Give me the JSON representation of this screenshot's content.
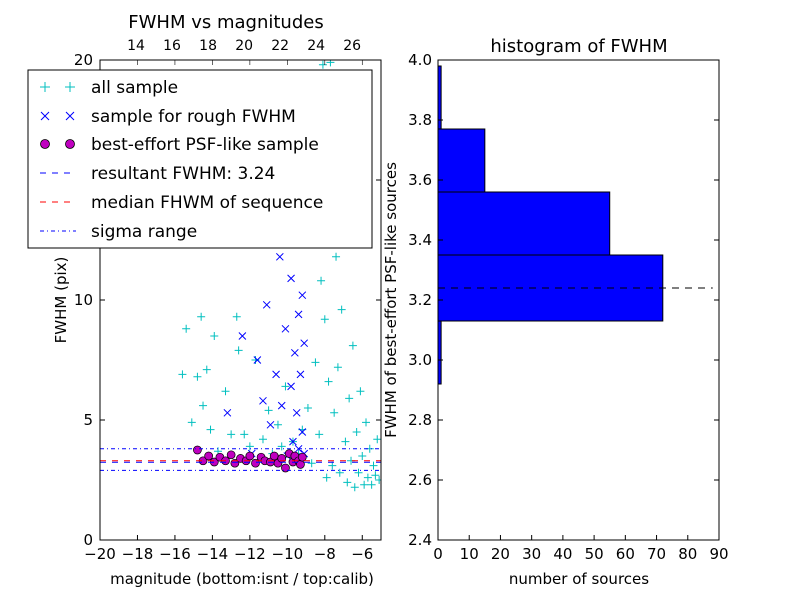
{
  "chart_data": [
    {
      "type": "scatter",
      "title": "FWHM vs magnitudes",
      "xlabel": "magnitude (bottom:isnt / top:calib)",
      "ylabel": "FWHM (pix)",
      "xlim": [
        -20,
        -5
      ],
      "ylim": [
        0,
        20
      ],
      "top_xlim": [
        12,
        27.6
      ],
      "x_ticks": [
        -20,
        -18,
        -16,
        -14,
        -12,
        -10,
        -8,
        -6
      ],
      "x_tick_labels": [
        "−20",
        "−18",
        "−16",
        "−14",
        "−12",
        "−10",
        "−8",
        "−6"
      ],
      "top_ticks": [
        14,
        16,
        18,
        20,
        22,
        24,
        26
      ],
      "top_tick_labels": [
        "14",
        "16",
        "18",
        "20",
        "22",
        "24",
        "26"
      ],
      "y_ticks": [
        0,
        5,
        10,
        15,
        20
      ],
      "y_tick_labels": [
        "0",
        "5",
        "10",
        "15",
        "20"
      ],
      "grid": false,
      "legend": "upper-left",
      "series": [
        {
          "name": "all sample",
          "marker": "+",
          "color": "#00bfbf",
          "points": [
            [
              -15.6,
              6.9
            ],
            [
              -15.4,
              8.8
            ],
            [
              -15.1,
              4.9
            ],
            [
              -14.8,
              6.8
            ],
            [
              -14.6,
              9.3
            ],
            [
              -14.5,
              5.6
            ],
            [
              -14.3,
              7.1
            ],
            [
              -14.1,
              4.6
            ],
            [
              -13.9,
              8.5
            ],
            [
              -13.7,
              3.7
            ],
            [
              -13.3,
              6.2
            ],
            [
              -13.0,
              4.4
            ],
            [
              -12.7,
              9.3
            ],
            [
              -12.6,
              7.9
            ],
            [
              -12.3,
              4.4
            ],
            [
              -12.0,
              3.9
            ],
            [
              -11.7,
              7.5
            ],
            [
              -11.3,
              4.2
            ],
            [
              -11.0,
              5.4
            ],
            [
              -10.8,
              3.6
            ],
            [
              -10.5,
              4.8
            ],
            [
              -10.3,
              3.9
            ],
            [
              -10.1,
              6.4
            ],
            [
              -9.8,
              3.5
            ],
            [
              -9.7,
              4.1
            ],
            [
              -9.4,
              3.6
            ],
            [
              -9.2,
              4.6
            ],
            [
              -9.0,
              18.5
            ],
            [
              -8.9,
              5.5
            ],
            [
              -8.8,
              16.2
            ],
            [
              -8.7,
              3.2
            ],
            [
              -8.6,
              12.8
            ],
            [
              -8.5,
              7.4
            ],
            [
              -8.4,
              14.6
            ],
            [
              -8.3,
              4.4
            ],
            [
              -8.2,
              10.8
            ],
            [
              -8.1,
              19.8
            ],
            [
              -8.0,
              9.2
            ],
            [
              -7.9,
              2.6
            ],
            [
              -7.8,
              6.6
            ],
            [
              -7.7,
              19.9
            ],
            [
              -7.6,
              3.1
            ],
            [
              -7.5,
              5.3
            ],
            [
              -7.4,
              11.8
            ],
            [
              -7.3,
              7.2
            ],
            [
              -7.2,
              2.8
            ],
            [
              -7.1,
              9.6
            ],
            [
              -7.0,
              13.3
            ],
            [
              -6.9,
              4.1
            ],
            [
              -6.8,
              2.4
            ],
            [
              -6.7,
              5.9
            ],
            [
              -6.6,
              3.3
            ],
            [
              -6.5,
              8.1
            ],
            [
              -6.4,
              2.2
            ],
            [
              -6.3,
              4.5
            ],
            [
              -6.2,
              2.8
            ],
            [
              -6.1,
              6.2
            ],
            [
              -6.0,
              3.5
            ],
            [
              -5.9,
              2.3
            ],
            [
              -5.8,
              4.9
            ],
            [
              -5.7,
              2.6
            ],
            [
              -5.6,
              3.8
            ],
            [
              -5.5,
              2.3
            ],
            [
              -5.4,
              3.1
            ],
            [
              -5.3,
              2.7
            ],
            [
              -5.2,
              4.2
            ],
            [
              -5.1,
              2.5
            ]
          ]
        },
        {
          "name": "sample for rough FWHM",
          "marker": "x",
          "color": "#0000ff",
          "points": [
            [
              -13.2,
              5.3
            ],
            [
              -12.4,
              8.5
            ],
            [
              -11.9,
              3.6
            ],
            [
              -11.6,
              7.5
            ],
            [
              -11.3,
              5.8
            ],
            [
              -11.1,
              9.8
            ],
            [
              -10.9,
              4.8
            ],
            [
              -10.6,
              6.9
            ],
            [
              -10.4,
              11.8
            ],
            [
              -10.3,
              5.6
            ],
            [
              -10.1,
              8.8
            ],
            [
              -10.0,
              3.5
            ],
            [
              -9.9,
              14.1
            ],
            [
              -9.8,
              6.4
            ],
            [
              -9.8,
              10.9
            ],
            [
              -9.7,
              4.1
            ],
            [
              -9.6,
              16.2
            ],
            [
              -9.6,
              7.8
            ],
            [
              -9.5,
              12.5
            ],
            [
              -9.5,
              5.3
            ],
            [
              -9.4,
              9.4
            ],
            [
              -9.4,
              3.8
            ],
            [
              -9.3,
              6.9
            ],
            [
              -9.3,
              13.6
            ],
            [
              -9.2,
              4.5
            ],
            [
              -9.2,
              10.2
            ],
            [
              -9.1,
              8.2
            ],
            [
              -9.1,
              3.6
            ]
          ]
        },
        {
          "name": "best-effort PSF-like sample",
          "marker": "o",
          "color": "#bf00bf",
          "points": [
            [
              -14.8,
              3.75
            ],
            [
              -14.5,
              3.3
            ],
            [
              -14.2,
              3.5
            ],
            [
              -13.9,
              3.25
            ],
            [
              -13.6,
              3.45
            ],
            [
              -13.3,
              3.3
            ],
            [
              -13.0,
              3.55
            ],
            [
              -12.8,
              3.2
            ],
            [
              -12.5,
              3.4
            ],
            [
              -12.2,
              3.3
            ],
            [
              -12.0,
              3.5
            ],
            [
              -11.7,
              3.2
            ],
            [
              -11.4,
              3.45
            ],
            [
              -11.2,
              3.3
            ],
            [
              -10.9,
              3.25
            ],
            [
              -10.7,
              3.5
            ],
            [
              -10.5,
              3.2
            ],
            [
              -10.3,
              3.4
            ],
            [
              -10.1,
              3.0
            ],
            [
              -9.9,
              3.6
            ],
            [
              -9.7,
              3.25
            ],
            [
              -9.6,
              3.5
            ],
            [
              -9.4,
              3.3
            ],
            [
              -9.3,
              3.15
            ],
            [
              -9.2,
              3.45
            ]
          ]
        }
      ],
      "hlines": [
        {
          "name": "resultant FWHM: 3.24",
          "y": 3.24,
          "style": "dashed",
          "color": "#0000ff"
        },
        {
          "name": "median FHWM of sequence",
          "y": 3.3,
          "style": "dashed",
          "color": "#ff0000"
        },
        {
          "name": "sigma range",
          "y": 3.8,
          "style": "dashdot",
          "color": "#0000ff"
        },
        {
          "name": "sigma range",
          "y": 2.9,
          "style": "dashdot",
          "color": "#0000ff"
        }
      ]
    },
    {
      "type": "bar",
      "orientation": "horizontal",
      "title": "histogram of FWHM",
      "xlabel": "number of sources",
      "ylabel": "FWHM of best-effort PSF-like sources",
      "xlim": [
        0,
        90
      ],
      "ylim": [
        2.4,
        4.0
      ],
      "x_ticks": [
        0,
        10,
        20,
        30,
        40,
        50,
        60,
        70,
        80,
        90
      ],
      "x_tick_labels": [
        "0",
        "10",
        "20",
        "30",
        "40",
        "50",
        "60",
        "70",
        "80",
        "90"
      ],
      "y_ticks": [
        2.4,
        2.6,
        2.8,
        3.0,
        3.2,
        3.4,
        3.6,
        3.8,
        4.0
      ],
      "y_tick_labels": [
        "2.4",
        "2.6",
        "2.8",
        "3.0",
        "3.2",
        "3.4",
        "3.6",
        "3.8",
        "4.0"
      ],
      "bar_color": "#0000ff",
      "bins": [
        {
          "from": 2.92,
          "to": 3.13,
          "count": 1
        },
        {
          "from": 3.13,
          "to": 3.35,
          "count": 72
        },
        {
          "from": 3.35,
          "to": 3.56,
          "count": 55
        },
        {
          "from": 3.56,
          "to": 3.77,
          "count": 15
        },
        {
          "from": 3.77,
          "to": 3.98,
          "count": 1
        }
      ],
      "reference_line": {
        "y": 3.24,
        "style": "dashed",
        "color": "#000000"
      }
    }
  ]
}
